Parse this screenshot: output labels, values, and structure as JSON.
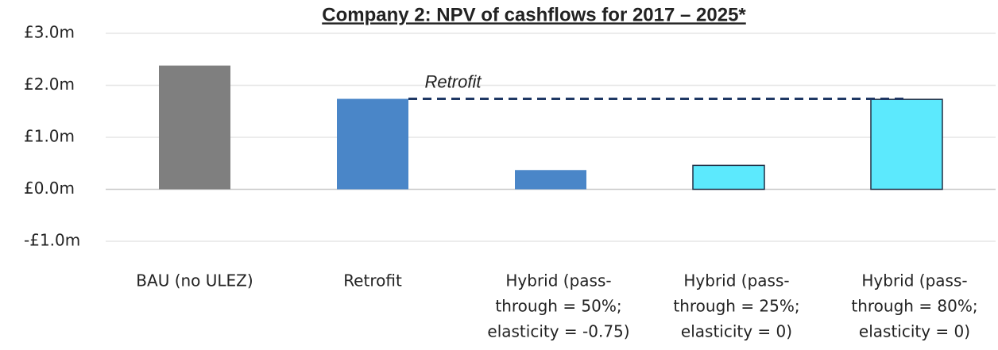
{
  "chart_data": {
    "type": "bar",
    "title": "Company 2: NPV of cashflows for 2017 – 2025*",
    "categories": [
      [
        "BAU (no ULEZ)"
      ],
      [
        "Retrofit"
      ],
      [
        "Hybrid (pass-",
        "through = 50%;",
        "elasticity = -0.75)"
      ],
      [
        "Hybrid (pass-",
        "through = 25%;",
        "elasticity = 0)"
      ],
      [
        "Hybrid (pass-",
        "through = 80%;",
        "elasticity = 0)"
      ]
    ],
    "values": [
      2.38,
      1.74,
      0.37,
      0.46,
      1.73
    ],
    "colors": [
      "#7f7f7f",
      "#4a86c8",
      "#4a86c8",
      "#5ce9fd",
      "#5ce9fd"
    ],
    "edgecolors": [
      null,
      null,
      null,
      "#1f2f45",
      "#1f2f45"
    ],
    "ylim": [
      -1,
      3
    ],
    "yticks": [
      {
        "value": -1,
        "label": "-£1.0m",
        "color": "#e00000"
      },
      {
        "value": 0,
        "label": "£0.0m"
      },
      {
        "value": 1,
        "label": "£1.0m"
      },
      {
        "value": 2,
        "label": "£2.0m"
      },
      {
        "value": 3,
        "label": "£3.0m"
      }
    ],
    "grid": true,
    "annotation": {
      "text": "Retrofit",
      "color": "#1f3864"
    }
  }
}
